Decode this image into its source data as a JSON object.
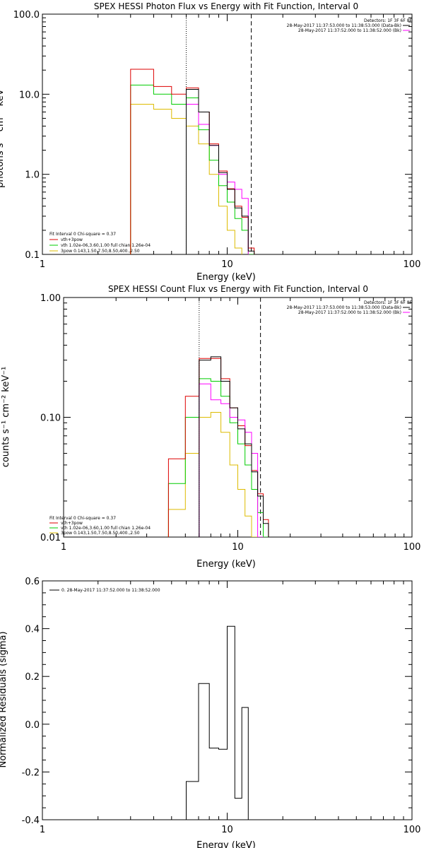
{
  "chart_data": [
    {
      "type": "line",
      "title": "SPEX HESSI Photon Flux vs Energy with Fit Function, Interval 0",
      "xlabel": "Energy (keV)",
      "ylabel": "photons s⁻¹ cm⁻² keV⁻¹",
      "xscale": "log",
      "yscale": "log",
      "xlim": [
        1,
        100
      ],
      "ylim": [
        0.1,
        100
      ],
      "x_ticks": [
        "1",
        "10",
        "100"
      ],
      "y_ticks": [
        "0.1",
        "1.0",
        "10.0",
        "100.0"
      ],
      "vlines": [
        {
          "x": 6.0,
          "style": "dotted"
        },
        {
          "x": 13.5,
          "style": "dashed"
        }
      ],
      "header_legend": {
        "title": "Detectors: 1F 3F 6F 8F",
        "entries": [
          {
            "label": "28-May-2017 11:37:53.000 to 11:38:53.000 (Data-Bk)",
            "color": "#000000"
          },
          {
            "label": "28-May-2017 11:37:52.000 to 11:38:52.000 (Bk)",
            "color": "#ff00ff"
          }
        ]
      },
      "fit_legend": {
        "title": "Fit Interval 0   Chi-square = 0.37",
        "entries": [
          {
            "label": "vth+3pow",
            "color": "#dd0000"
          },
          {
            "label": "vth 1.02e-06,3.60,1.00  full chian 1.26e-04",
            "color": "#00cc00"
          },
          {
            "label": "3pow 0.143,1.50,7.50,8.50,400.,2.50",
            "color": "#ddbb00"
          }
        ]
      },
      "x_edges": [
        3.0,
        4.0,
        5.0,
        6.0,
        7.0,
        8.0,
        9.0,
        10.0,
        11.0,
        12.0,
        13.0,
        14.0,
        15.0
      ],
      "series": [
        {
          "name": "Data-Bk",
          "color": "#000000",
          "values": [
            null,
            null,
            null,
            11.5,
            6.0,
            2.3,
            1.05,
            0.65,
            0.38,
            0.3,
            0.11,
            null
          ]
        },
        {
          "name": "Bk",
          "color": "#ff00ff",
          "values": [
            null,
            null,
            null,
            7.5,
            4.2,
            2.3,
            1.0,
            0.8,
            0.65,
            0.5,
            0.08,
            null
          ]
        },
        {
          "name": "vth+3pow",
          "color": "#dd0000",
          "values": [
            20.5,
            12.5,
            10.0,
            12.0,
            6.0,
            2.4,
            1.1,
            0.66,
            0.4,
            0.29,
            0.12,
            null
          ]
        },
        {
          "name": "vth",
          "color": "#00cc00",
          "values": [
            13.0,
            10.0,
            7.5,
            9.0,
            3.6,
            1.5,
            0.72,
            0.45,
            0.28,
            0.2,
            0.1,
            null
          ]
        },
        {
          "name": "3pow",
          "color": "#ddbb00",
          "values": [
            7.5,
            6.5,
            5.0,
            4.0,
            2.4,
            1.0,
            0.4,
            0.2,
            0.12,
            0.09,
            null,
            null
          ]
        }
      ]
    },
    {
      "type": "line",
      "title": "SPEX HESSI Count Flux vs Energy with Fit Function, Interval 0",
      "xlabel": "Energy (keV)",
      "ylabel": "counts s⁻¹ cm⁻² keV⁻¹",
      "xscale": "log",
      "yscale": "log",
      "xlim": [
        1,
        100
      ],
      "ylim": [
        0.01,
        1
      ],
      "x_ticks": [
        "1",
        "10",
        "100"
      ],
      "y_ticks": [
        "0.01",
        "0.10",
        "1.00"
      ],
      "vlines": [
        {
          "x": 6.0,
          "style": "dotted"
        },
        {
          "x": 13.5,
          "style": "dashed"
        }
      ],
      "header_legend": {
        "title": "Detectors: 1F 3F 6F 8F",
        "entries": [
          {
            "label": "28-May-2017 11:37:53.000 to 11:38:53.000 (Data-Bk)",
            "color": "#000000"
          },
          {
            "label": "28-May-2017 11:37:52.000 to 11:38:52.000 (Bk)",
            "color": "#ff00ff"
          }
        ]
      },
      "fit_legend": {
        "title": "Fit Interval 0   Chi-square = 0.37",
        "entries": [
          {
            "label": "vth+3pow",
            "color": "#dd0000"
          },
          {
            "label": "vth 1.02e-06,3.60,1.00  full chian 1.26e-04",
            "color": "#00cc00"
          },
          {
            "label": "3pow 0.143,1.50,7.50,8.50,400.,2.50",
            "color": "#ddbb00"
          }
        ]
      },
      "x_edges": [
        4.0,
        5.0,
        6.0,
        7.0,
        8.0,
        9.0,
        10.0,
        11.0,
        12.0,
        13.0,
        14.0,
        15.0
      ],
      "series": [
        {
          "name": "Data-Bk",
          "color": "#000000",
          "values": [
            null,
            null,
            0.3,
            0.32,
            0.2,
            0.12,
            0.08,
            0.06,
            0.035,
            0.022,
            0.013
          ]
        },
        {
          "name": "Bk",
          "color": "#ff00ff",
          "values": [
            null,
            null,
            0.19,
            0.14,
            0.13,
            0.1,
            0.095,
            0.075,
            0.05,
            0.01,
            null
          ]
        },
        {
          "name": "vth+3pow",
          "color": "#dd0000",
          "values": [
            0.045,
            0.15,
            0.31,
            0.31,
            0.21,
            0.12,
            0.085,
            0.058,
            0.036,
            0.023,
            0.014
          ]
        },
        {
          "name": "vth",
          "color": "#00cc00",
          "values": [
            0.028,
            0.1,
            0.21,
            0.2,
            0.15,
            0.09,
            0.06,
            0.04,
            0.025,
            0.016,
            0.01
          ]
        },
        {
          "name": "3pow",
          "color": "#ddbb00",
          "values": [
            0.017,
            0.05,
            0.1,
            0.11,
            0.075,
            0.04,
            0.025,
            0.015,
            0.01,
            null,
            null
          ]
        }
      ]
    },
    {
      "type": "line",
      "title": "",
      "xlabel": "Energy (keV)",
      "ylabel": "Normalized Residuals (sigma)",
      "xscale": "log",
      "yscale": "linear",
      "xlim": [
        1,
        100
      ],
      "ylim": [
        -0.4,
        0.6
      ],
      "x_ticks": [
        "1",
        "10",
        "100"
      ],
      "y_ticks": [
        "-0.4",
        "-0.2",
        "0.0",
        "0.2",
        "0.4",
        "0.6"
      ],
      "legend": [
        {
          "label": "0. 28-May-2017 11:37:52.000 to 11:38:52.000",
          "color": "#000000"
        }
      ],
      "x_edges": [
        6.0,
        7.0,
        8.0,
        9.0,
        10.0,
        11.0,
        12.0,
        13.0
      ],
      "series": [
        {
          "name": "0. 28-May-2017 11:37:52.000 to 11:38:52.000",
          "color": "#000000",
          "values": [
            -0.24,
            0.17,
            -0.1,
            -0.105,
            0.41,
            -0.31,
            0.07
          ]
        }
      ]
    }
  ]
}
